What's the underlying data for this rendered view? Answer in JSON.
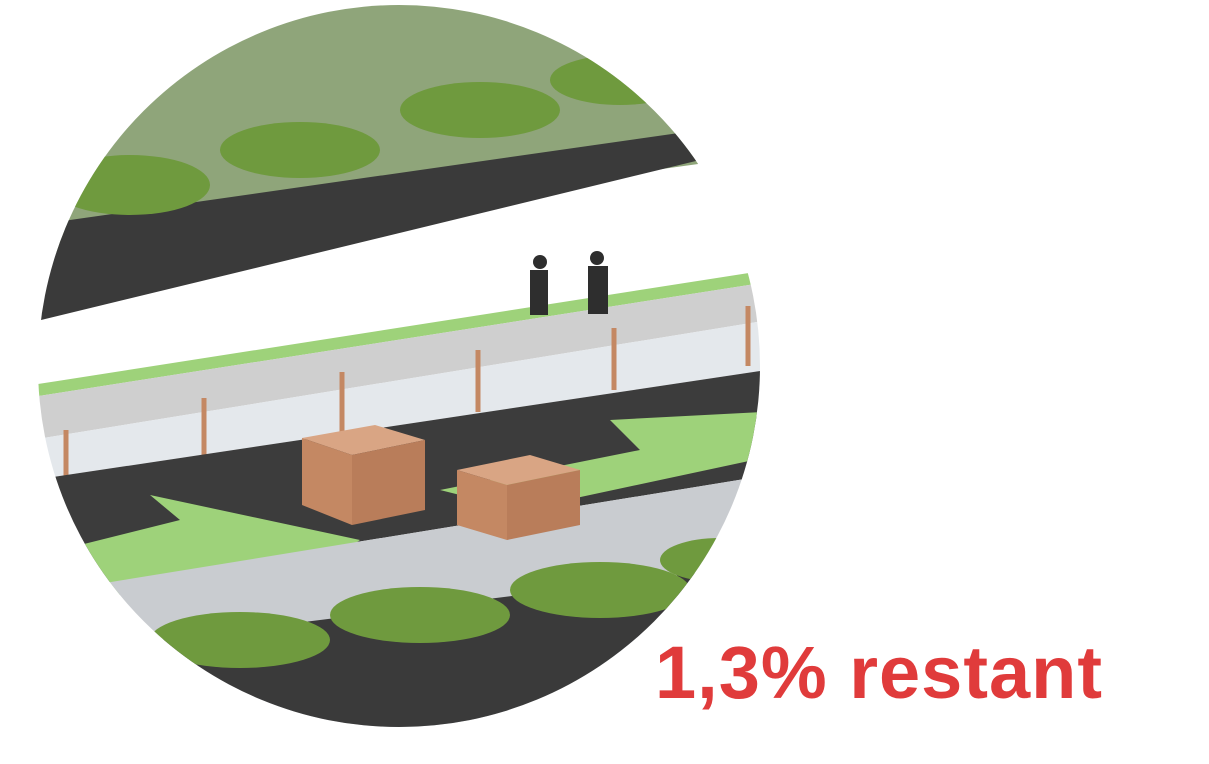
{
  "caption": "1,3% restant"
}
